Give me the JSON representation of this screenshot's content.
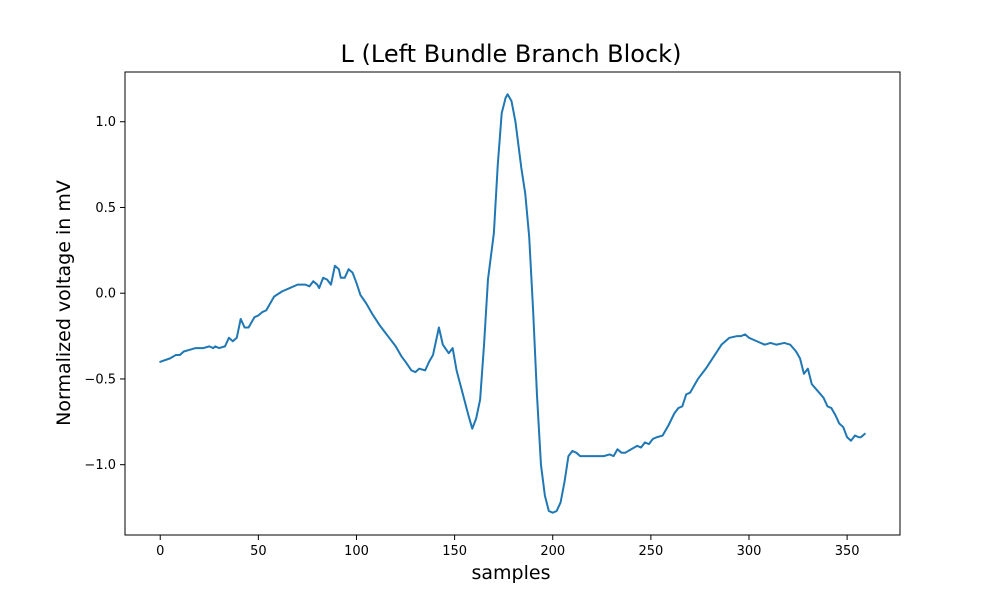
{
  "colors": {
    "series": "#1f77b4",
    "axes": "#000000",
    "background": "#ffffff"
  },
  "chart_data": {
    "type": "line",
    "title": "L (Left Bundle Branch Block)",
    "xlabel": "samples",
    "ylabel": "Normalized voltage in mV",
    "xlim": [
      -17.95,
      376.95
    ],
    "ylim": [
      -1.41,
      1.29
    ],
    "xticks": [
      0,
      50,
      100,
      150,
      200,
      250,
      300,
      350
    ],
    "yticks": [
      -1.0,
      -0.5,
      0.0,
      0.5,
      1.0
    ],
    "xtick_labels": [
      "0",
      "50",
      "100",
      "150",
      "200",
      "250",
      "300",
      "350"
    ],
    "ytick_labels": [
      "−1.0",
      "−0.5",
      "0.0",
      "0.5",
      "1.0"
    ],
    "grid": false,
    "legend": "none",
    "series": [
      {
        "points": [
          [
            0,
            -0.4
          ],
          [
            5,
            -0.38
          ],
          [
            8,
            -0.36
          ],
          [
            10,
            -0.36
          ],
          [
            12,
            -0.34
          ],
          [
            15,
            -0.33
          ],
          [
            18,
            -0.32
          ],
          [
            22,
            -0.32
          ],
          [
            25,
            -0.31
          ],
          [
            27,
            -0.32
          ],
          [
            28,
            -0.31
          ],
          [
            30,
            -0.32
          ],
          [
            33,
            -0.31
          ],
          [
            35,
            -0.26
          ],
          [
            37,
            -0.28
          ],
          [
            39,
            -0.26
          ],
          [
            41,
            -0.15
          ],
          [
            43,
            -0.2
          ],
          [
            45,
            -0.2
          ],
          [
            48,
            -0.14
          ],
          [
            50,
            -0.13
          ],
          [
            52,
            -0.11
          ],
          [
            54,
            -0.1
          ],
          [
            56,
            -0.06
          ],
          [
            58,
            -0.02
          ],
          [
            62,
            0.01
          ],
          [
            66,
            0.03
          ],
          [
            70,
            0.05
          ],
          [
            74,
            0.05
          ],
          [
            76,
            0.04
          ],
          [
            78,
            0.07
          ],
          [
            80,
            0.05
          ],
          [
            81,
            0.03
          ],
          [
            83,
            0.09
          ],
          [
            85,
            0.08
          ],
          [
            87,
            0.05
          ],
          [
            89,
            0.16
          ],
          [
            91,
            0.14
          ],
          [
            92,
            0.09
          ],
          [
            94,
            0.09
          ],
          [
            96,
            0.14
          ],
          [
            98,
            0.12
          ],
          [
            100,
            0.06
          ],
          [
            102,
            -0.01
          ],
          [
            105,
            -0.06
          ],
          [
            108,
            -0.12
          ],
          [
            112,
            -0.19
          ],
          [
            116,
            -0.25
          ],
          [
            120,
            -0.31
          ],
          [
            123,
            -0.37
          ],
          [
            125,
            -0.4
          ],
          [
            128,
            -0.45
          ],
          [
            130,
            -0.46
          ],
          [
            132,
            -0.44
          ],
          [
            135,
            -0.45
          ],
          [
            137,
            -0.4
          ],
          [
            139,
            -0.36
          ],
          [
            142,
            -0.2
          ],
          [
            144,
            -0.3
          ],
          [
            147,
            -0.35
          ],
          [
            149,
            -0.32
          ],
          [
            151,
            -0.45
          ],
          [
            154,
            -0.58
          ],
          [
            157,
            -0.71
          ],
          [
            159,
            -0.79
          ],
          [
            161,
            -0.73
          ],
          [
            163,
            -0.62
          ],
          [
            165,
            -0.3
          ],
          [
            167,
            0.08
          ],
          [
            170,
            0.35
          ],
          [
            172,
            0.75
          ],
          [
            174,
            1.05
          ],
          [
            176,
            1.14
          ],
          [
            177,
            1.16
          ],
          [
            179,
            1.12
          ],
          [
            181,
            1.0
          ],
          [
            184,
            0.73
          ],
          [
            186,
            0.58
          ],
          [
            188,
            0.33
          ],
          [
            190,
            -0.1
          ],
          [
            192,
            -0.6
          ],
          [
            194,
            -1.0
          ],
          [
            196,
            -1.18
          ],
          [
            198,
            -1.27
          ],
          [
            200,
            -1.28
          ],
          [
            202,
            -1.27
          ],
          [
            204,
            -1.22
          ],
          [
            206,
            -1.1
          ],
          [
            208,
            -0.95
          ],
          [
            210,
            -0.92
          ],
          [
            212,
            -0.93
          ],
          [
            214,
            -0.95
          ],
          [
            218,
            -0.95
          ],
          [
            222,
            -0.95
          ],
          [
            226,
            -0.95
          ],
          [
            229,
            -0.94
          ],
          [
            231,
            -0.95
          ],
          [
            233,
            -0.91
          ],
          [
            235,
            -0.93
          ],
          [
            237,
            -0.93
          ],
          [
            240,
            -0.91
          ],
          [
            243,
            -0.89
          ],
          [
            245,
            -0.9
          ],
          [
            247,
            -0.87
          ],
          [
            249,
            -0.88
          ],
          [
            251,
            -0.85
          ],
          [
            253,
            -0.84
          ],
          [
            256,
            -0.83
          ],
          [
            259,
            -0.77
          ],
          [
            262,
            -0.7
          ],
          [
            264,
            -0.67
          ],
          [
            266,
            -0.66
          ],
          [
            268,
            -0.59
          ],
          [
            270,
            -0.58
          ],
          [
            274,
            -0.5
          ],
          [
            278,
            -0.44
          ],
          [
            282,
            -0.37
          ],
          [
            286,
            -0.3
          ],
          [
            290,
            -0.26
          ],
          [
            294,
            -0.25
          ],
          [
            296,
            -0.25
          ],
          [
            298,
            -0.24
          ],
          [
            300,
            -0.26
          ],
          [
            302,
            -0.27
          ],
          [
            304,
            -0.28
          ],
          [
            308,
            -0.3
          ],
          [
            311,
            -0.29
          ],
          [
            314,
            -0.3
          ],
          [
            318,
            -0.29
          ],
          [
            321,
            -0.3
          ],
          [
            324,
            -0.34
          ],
          [
            326,
            -0.38
          ],
          [
            328,
            -0.47
          ],
          [
            330,
            -0.44
          ],
          [
            332,
            -0.53
          ],
          [
            335,
            -0.57
          ],
          [
            338,
            -0.61
          ],
          [
            340,
            -0.66
          ],
          [
            342,
            -0.67
          ],
          [
            344,
            -0.71
          ],
          [
            346,
            -0.76
          ],
          [
            348,
            -0.78
          ],
          [
            350,
            -0.84
          ],
          [
            352,
            -0.86
          ],
          [
            354,
            -0.83
          ],
          [
            356,
            -0.84
          ],
          [
            357,
            -0.84
          ],
          [
            359,
            -0.82
          ]
        ]
      }
    ]
  }
}
